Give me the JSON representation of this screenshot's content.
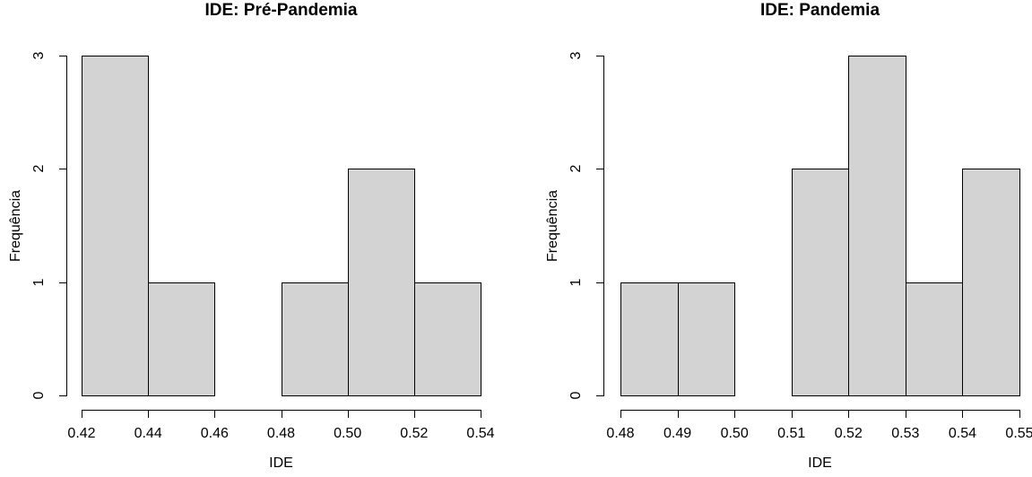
{
  "figure": {
    "background": "#FFFFFF",
    "text_color": "#000000",
    "bar_fill": "#D3D3D3",
    "bar_border": "#000000"
  },
  "chart_data": [
    {
      "type": "bar",
      "subtype": "histogram",
      "title": "IDE: Pré-Pandemia",
      "xlabel": "IDE",
      "ylabel": "Frequência",
      "bin_edges": [
        0.42,
        0.44,
        0.46,
        0.48,
        0.5,
        0.52,
        0.54
      ],
      "counts": [
        3,
        1,
        0,
        1,
        2,
        1
      ],
      "x_tick_labels": [
        "0.42",
        "0.44",
        "0.46",
        "0.48",
        "0.50",
        "0.52",
        "0.54"
      ],
      "y_ticks": [
        0,
        1,
        2,
        3
      ],
      "y_tick_labels": [
        "0",
        "1",
        "2",
        "3"
      ],
      "xlim": [
        0.42,
        0.54
      ],
      "ylim": [
        0,
        3
      ],
      "grid": false,
      "legend": false
    },
    {
      "type": "bar",
      "subtype": "histogram",
      "title": "IDE: Pandemia",
      "xlabel": "IDE",
      "ylabel": "Frequência",
      "bin_edges": [
        0.48,
        0.49,
        0.5,
        0.51,
        0.52,
        0.53,
        0.54,
        0.55
      ],
      "counts": [
        1,
        1,
        0,
        2,
        3,
        1,
        2
      ],
      "x_tick_labels": [
        "0.48",
        "0.49",
        "0.50",
        "0.51",
        "0.52",
        "0.53",
        "0.54",
        "0.55"
      ],
      "y_ticks": [
        0,
        1,
        2,
        3
      ],
      "y_tick_labels": [
        "0",
        "1",
        "2",
        "3"
      ],
      "xlim": [
        0.48,
        0.55
      ],
      "ylim": [
        0,
        3
      ],
      "grid": false,
      "legend": false
    }
  ]
}
